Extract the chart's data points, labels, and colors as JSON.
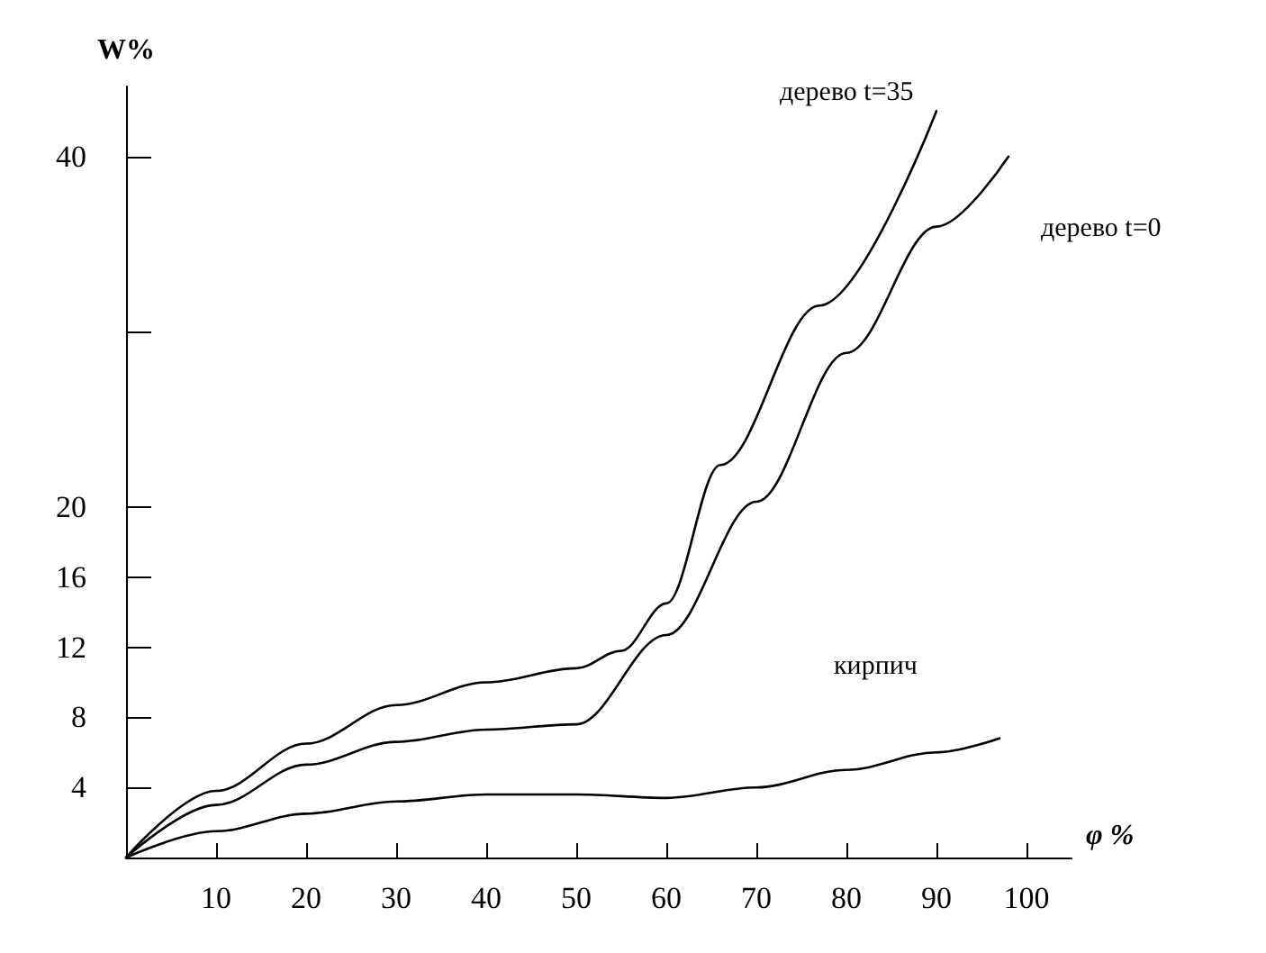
{
  "chart_data": {
    "type": "line",
    "xlabel": "φ %",
    "ylabel": "W%",
    "xlim": [
      0,
      105
    ],
    "xticks": [
      10,
      20,
      30,
      40,
      50,
      60,
      70,
      80,
      90,
      100
    ],
    "ylim": [
      0,
      44
    ],
    "yticks": [
      4,
      8,
      12,
      16,
      20,
      {
        "value": 30,
        "label": null
      },
      40
    ],
    "grid": false,
    "legend": false,
    "marker": "none",
    "line_style": "solid",
    "series": [
      {
        "name": "дерево t=35",
        "color": "#000000",
        "x": [
          0,
          10,
          20,
          30,
          40,
          50,
          55,
          60,
          66,
          77,
          90
        ],
        "values": [
          0,
          3.8,
          6.5,
          8.7,
          10,
          10.8,
          11.8,
          14.5,
          22.4,
          31.5,
          42.6
        ]
      },
      {
        "name": "дерево t=0",
        "color": "#000000",
        "x": [
          0,
          10,
          20,
          30,
          40,
          50,
          60,
          70,
          80,
          90,
          98
        ],
        "values": [
          0,
          3,
          5.3,
          6.6,
          7.3,
          7.6,
          12.7,
          20.3,
          28.8,
          36,
          40
        ]
      },
      {
        "name": "кирпич",
        "color": "#000000",
        "x": [
          0,
          10,
          20,
          30,
          40,
          50,
          60,
          70,
          80,
          90,
          97
        ],
        "values": [
          0,
          1.5,
          2.5,
          3.2,
          3.6,
          3.6,
          3.4,
          4,
          5,
          6,
          6.8
        ]
      }
    ]
  }
}
